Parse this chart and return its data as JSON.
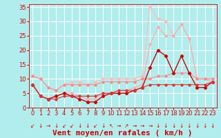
{
  "background_color": "#b2eded",
  "grid_color": "#ffffff",
  "xlabel": "Vent moyen/en rafales ( km/h )",
  "xlabel_color": "#cc0000",
  "xlabel_fontsize": 8,
  "tick_color": "#cc0000",
  "tick_fontsize": 6,
  "xlim": [
    -0.5,
    23.5
  ],
  "ylim": [
    0,
    36
  ],
  "yticks": [
    0,
    5,
    10,
    15,
    20,
    25,
    30,
    35
  ],
  "xticks": [
    0,
    1,
    2,
    3,
    4,
    5,
    6,
    7,
    8,
    9,
    10,
    11,
    12,
    13,
    14,
    15,
    16,
    17,
    18,
    19,
    20,
    21,
    22,
    23
  ],
  "series": [
    {
      "x": [
        0,
        1,
        2,
        3,
        4,
        5,
        6,
        7,
        8,
        9,
        10,
        11,
        12,
        13,
        14,
        15,
        16,
        17,
        18,
        19,
        20,
        21,
        22,
        23
      ],
      "y": [
        11,
        10,
        7,
        6,
        8,
        9,
        9,
        8,
        9,
        10,
        10,
        10,
        10,
        10,
        11,
        35,
        31,
        30,
        25,
        29,
        24,
        10,
        10,
        9
      ],
      "color": "#ffbbbb",
      "marker": "D",
      "markersize": 1.8,
      "linewidth": 0.8
    },
    {
      "x": [
        0,
        1,
        2,
        3,
        4,
        5,
        6,
        7,
        8,
        9,
        10,
        11,
        12,
        13,
        14,
        15,
        16,
        17,
        18,
        19,
        20,
        21,
        22,
        23
      ],
      "y": [
        8,
        4,
        3,
        4,
        5,
        5,
        4,
        3,
        3,
        5,
        5,
        6,
        6,
        7,
        8,
        22,
        28,
        25,
        25,
        29,
        24,
        10,
        10,
        9
      ],
      "color": "#ffaaaa",
      "marker": "D",
      "markersize": 1.8,
      "linewidth": 0.8
    },
    {
      "x": [
        0,
        1,
        2,
        3,
        4,
        5,
        6,
        7,
        8,
        9,
        10,
        11,
        12,
        13,
        14,
        15,
        16,
        17,
        18,
        19,
        20,
        21,
        22,
        23
      ],
      "y": [
        11,
        10,
        7,
        6,
        8,
        8,
        8,
        8,
        8,
        9,
        9,
        9,
        9,
        9,
        10,
        10,
        11,
        11,
        12,
        12,
        12,
        10,
        10,
        10
      ],
      "color": "#ff8888",
      "marker": "D",
      "markersize": 1.8,
      "linewidth": 0.8
    },
    {
      "x": [
        0,
        1,
        2,
        3,
        4,
        5,
        6,
        7,
        8,
        9,
        10,
        11,
        12,
        13,
        14,
        15,
        16,
        17,
        18,
        19,
        20,
        21,
        22,
        23
      ],
      "y": [
        8,
        4,
        3,
        4,
        5,
        4,
        3,
        2,
        2,
        4,
        5,
        5,
        5,
        6,
        7,
        14,
        20,
        18,
        12,
        18,
        12,
        7,
        7,
        9
      ],
      "color": "#cc0000",
      "marker": "D",
      "markersize": 2.2,
      "linewidth": 1.0
    },
    {
      "x": [
        0,
        1,
        2,
        3,
        4,
        5,
        6,
        7,
        8,
        9,
        10,
        11,
        12,
        13,
        14,
        15,
        16,
        17,
        18,
        19,
        20,
        21,
        22,
        23
      ],
      "y": [
        8,
        4,
        3,
        3,
        4,
        4,
        4,
        4,
        4,
        5,
        5,
        6,
        6,
        6,
        7,
        8,
        8,
        8,
        8,
        8,
        8,
        8,
        8,
        9
      ],
      "color": "#dd3333",
      "marker": "D",
      "markersize": 1.8,
      "linewidth": 0.8
    }
  ],
  "arrow_symbols": [
    "↙",
    "↓",
    "→",
    "↓",
    "↙",
    "↙",
    "↓",
    "↓",
    "↙",
    "↓",
    "↖",
    "→",
    "↗",
    "→",
    "→",
    "→",
    "↓",
    "↓",
    "↓",
    "↓",
    "↓",
    "↓",
    "↓",
    "↓"
  ]
}
